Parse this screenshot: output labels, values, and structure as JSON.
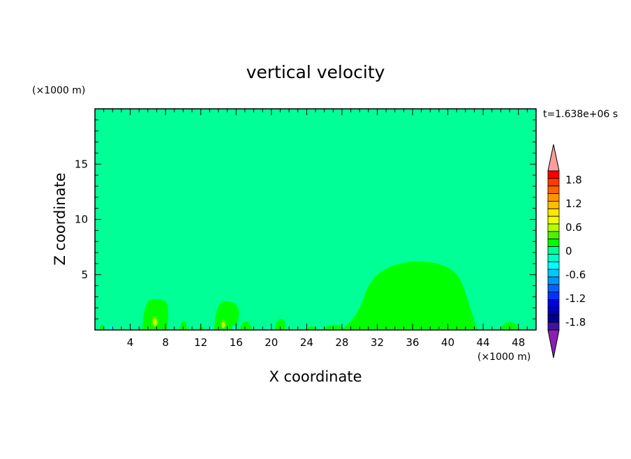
{
  "chart_data": {
    "type": "heatmap",
    "title": "vertical velocity",
    "xlabel": "X coordinate",
    "ylabel": "Z coordinate",
    "x_unit": "(×1000 m)",
    "y_unit": "(×1000 m)",
    "time_label": "t=1.638e+06 s",
    "xlim": [
      0,
      50
    ],
    "ylim": [
      0,
      20
    ],
    "x_ticks": [
      "4",
      "8",
      "12",
      "16",
      "20",
      "24",
      "28",
      "32",
      "36",
      "40",
      "44",
      "48"
    ],
    "y_ticks": [
      "5",
      "10",
      "15"
    ],
    "background_value": "-0.2 to 0",
    "features": [
      {
        "name": "large updraft",
        "value": "0 to 0.2",
        "x_range": [
          29,
          43
        ],
        "z_top": 6.2
      },
      {
        "name": "updraft near x=7",
        "value": "0 to 0.2",
        "x_range": [
          5.4,
          8.2
        ],
        "z_top": 2.8,
        "core": "0.4 to 0.6"
      },
      {
        "name": "updraft near x=15",
        "value": "0 to 0.2",
        "x_range": [
          13.6,
          16.4
        ],
        "z_top": 2.6,
        "core": "0.4 to 0.6"
      }
    ],
    "colorbar": {
      "labels": [
        "1.8",
        "1.2",
        "0.6",
        "0",
        "-0.6",
        "-1.2",
        "-1.8"
      ],
      "colors": [
        "#ff9c9c",
        "#ff0000",
        "#ff3c00",
        "#ff6400",
        "#ff9600",
        "#ffbe00",
        "#ffe600",
        "#f0ff00",
        "#b4ff00",
        "#50f000",
        "#00ff00",
        "#00ff96",
        "#00ffc8",
        "#00ffff",
        "#00c8ff",
        "#0096ff",
        "#0064ff",
        "#0032ff",
        "#0000dc",
        "#0000b4",
        "#00008c",
        "#3c14a0",
        "#8c1eb4"
      ]
    }
  }
}
